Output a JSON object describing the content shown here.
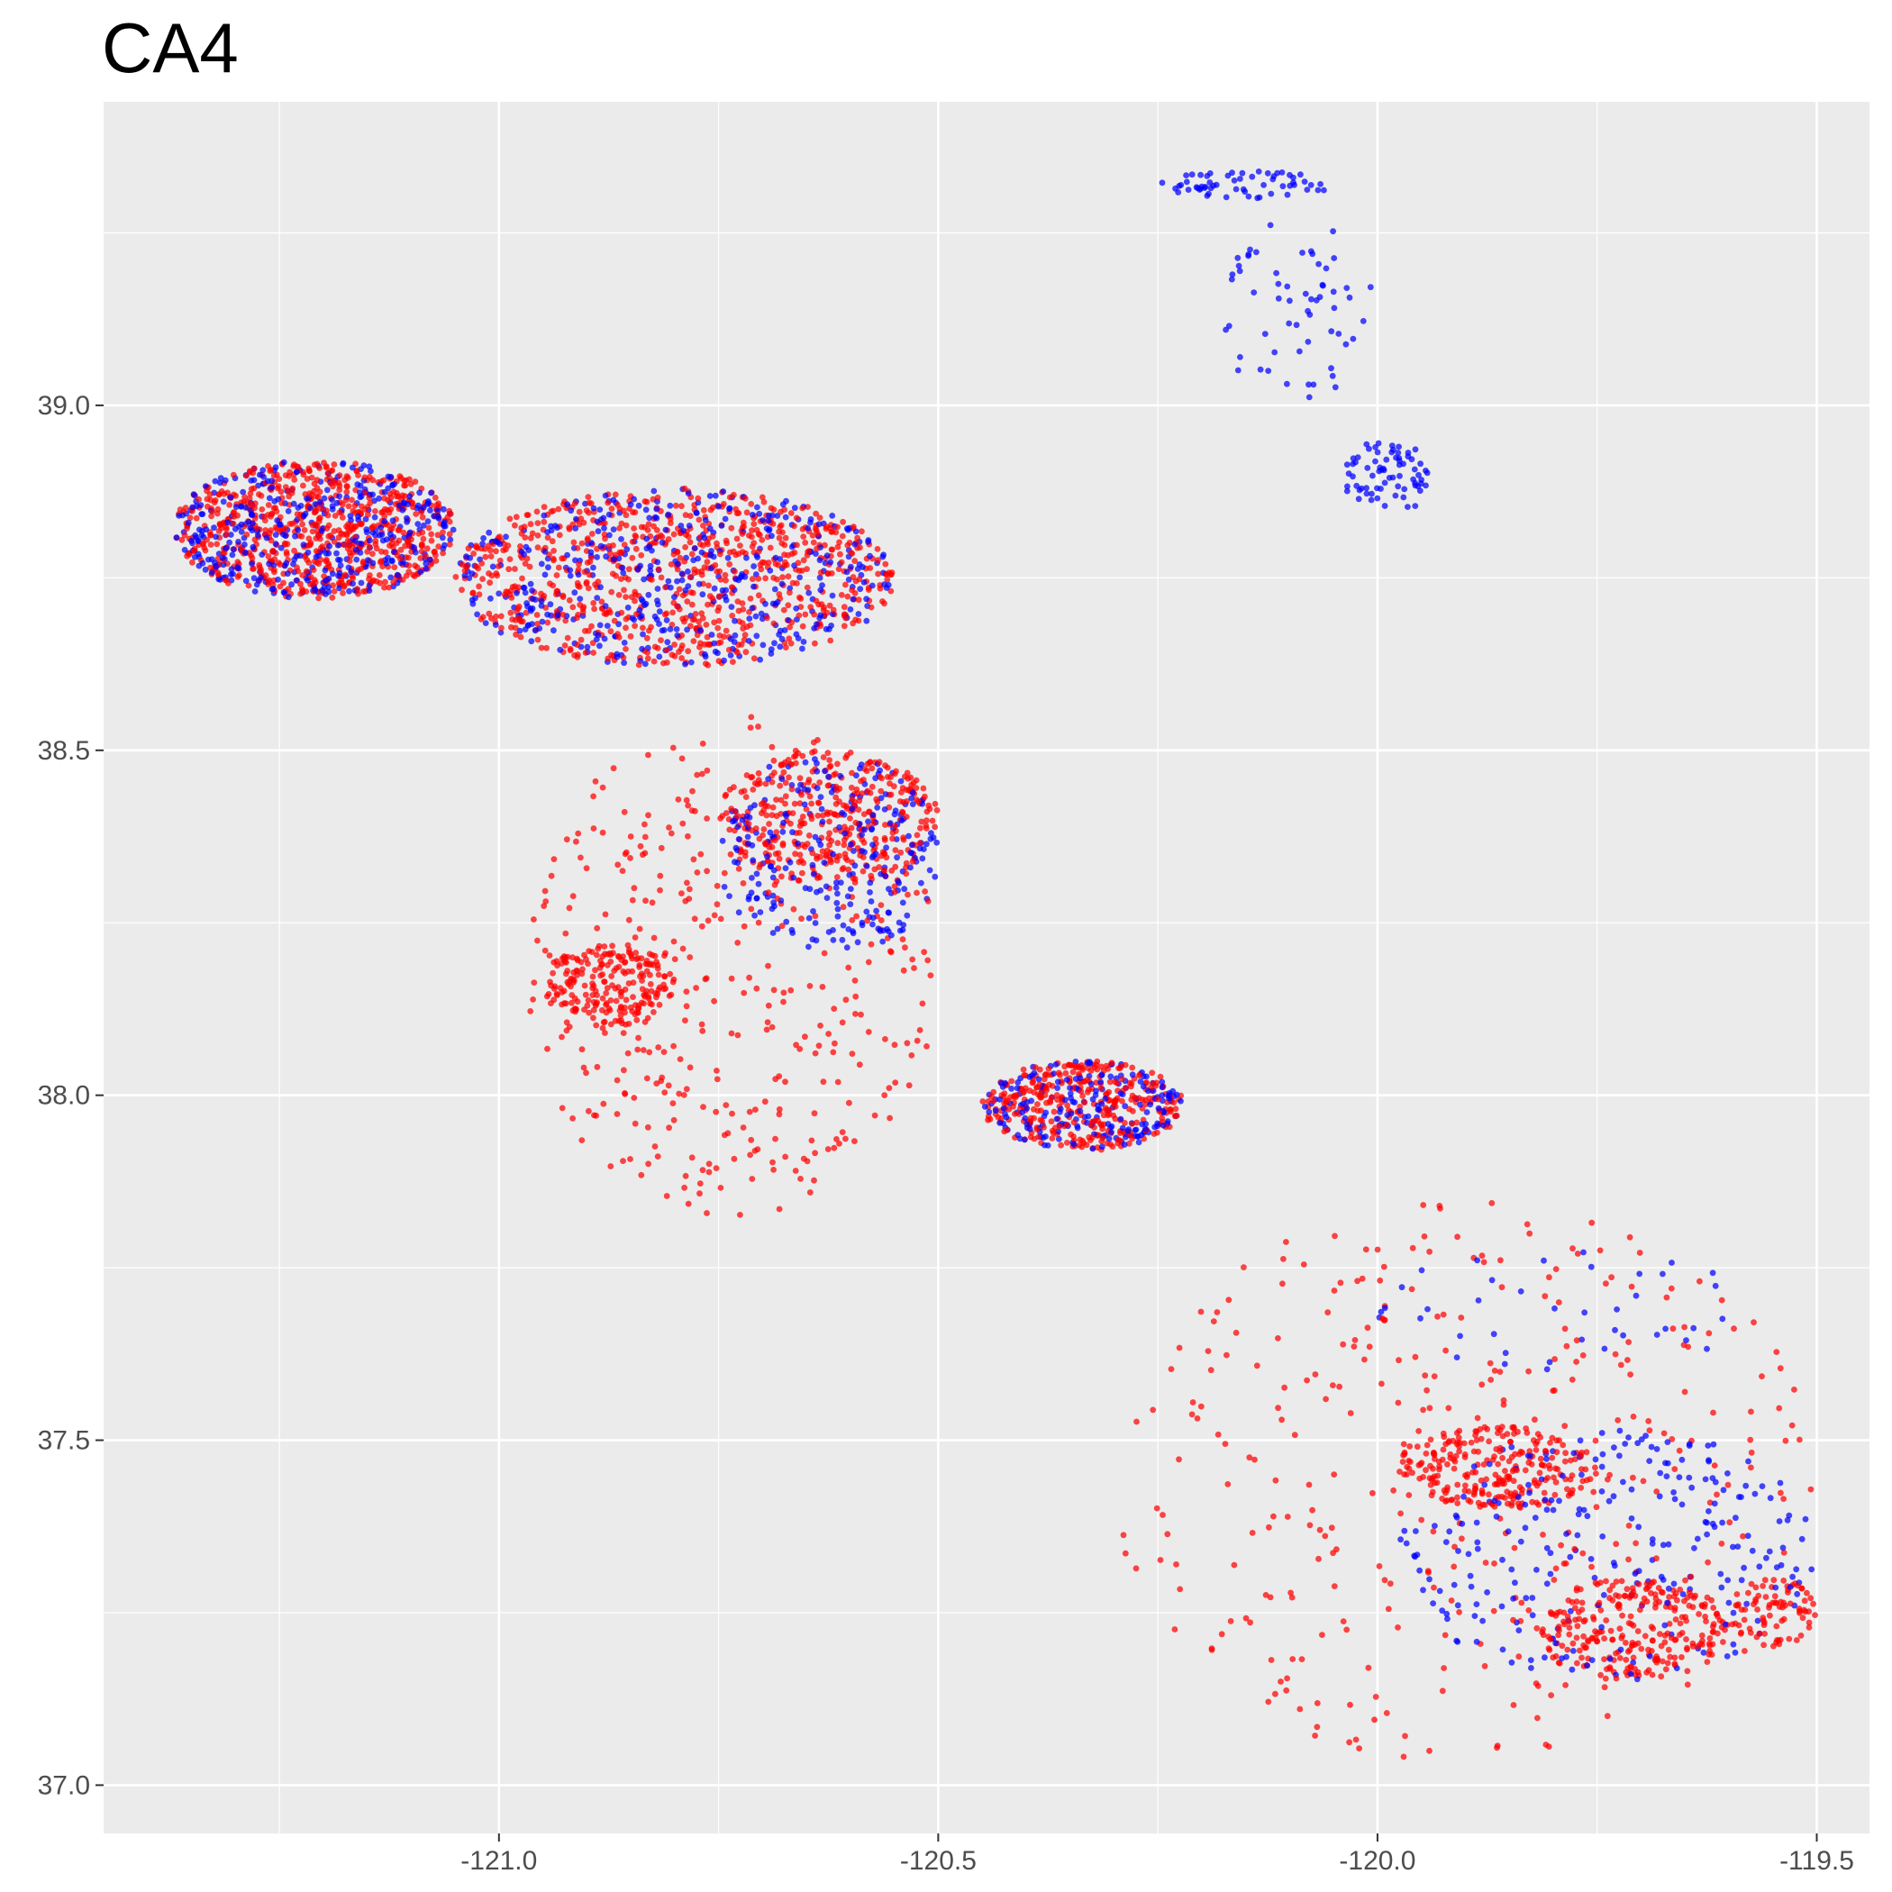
{
  "chart_data": {
    "type": "scatter",
    "title": "CA4",
    "xlabel": "",
    "ylabel": "",
    "xlim": [
      -121.45,
      -119.44
    ],
    "ylim": [
      36.93,
      39.44
    ],
    "x_ticks": [
      -121.0,
      -120.5,
      -120.0,
      -119.5
    ],
    "x_tick_labels": [
      "-121.0",
      "-120.5",
      "-120.0",
      "-119.5"
    ],
    "y_ticks": [
      37.0,
      37.5,
      38.0,
      38.5,
      39.0
    ],
    "y_tick_labels": [
      "37.0",
      "37.5",
      "38.0",
      "38.5",
      "39.0"
    ],
    "grid": true,
    "legend": "none",
    "colors": {
      "panel": "#ebebeb",
      "grid": "#ffffff",
      "red_series": "#ff0000",
      "blue_series": "#0000ff"
    },
    "series": [
      {
        "color": "#ff0000",
        "clusters": [
          {
            "lon_range": [
              -121.37,
              -121.05
            ],
            "lat_range": [
              38.72,
              38.92
            ],
            "count": 700
          },
          {
            "lon_range": [
              -121.05,
              -120.55
            ],
            "lat_range": [
              38.62,
              38.88
            ],
            "count": 800
          },
          {
            "lon_range": [
              -120.75,
              -120.5
            ],
            "lat_range": [
              38.3,
              38.5
            ],
            "count": 350
          },
          {
            "lon_range": [
              -120.95,
              -120.8
            ],
            "lat_range": [
              38.1,
              38.22
            ],
            "count": 200
          },
          {
            "lon_range": [
              -120.45,
              -120.22
            ],
            "lat_range": [
              37.92,
              38.05
            ],
            "count": 350
          },
          {
            "lon_range": [
              -119.98,
              -119.75
            ],
            "lat_range": [
              37.4,
              37.52
            ],
            "count": 250
          },
          {
            "lon_range": [
              -119.82,
              -119.6
            ],
            "lat_range": [
              37.15,
              37.3
            ],
            "count": 250
          },
          {
            "lon_range": [
              -119.6,
              -119.5
            ],
            "lat_range": [
              37.2,
              37.3
            ],
            "count": 80
          },
          {
            "lon_range": [
              -120.97,
              -120.5
            ],
            "lat_range": [
              37.82,
              38.55
            ],
            "count": 400
          },
          {
            "lon_range": [
              -120.3,
              -119.5
            ],
            "lat_range": [
              37.03,
              37.85
            ],
            "count": 350
          }
        ]
      },
      {
        "color": "#0000ff",
        "clusters": [
          {
            "lon_range": [
              -120.25,
              -120.05
            ],
            "lat_range": [
              39.3,
              39.34
            ],
            "count": 60
          },
          {
            "lon_range": [
              -120.18,
              -120.0
            ],
            "lat_range": [
              39.0,
              39.27
            ],
            "count": 60
          },
          {
            "lon_range": [
              -120.04,
              -119.94
            ],
            "lat_range": [
              38.84,
              38.95
            ],
            "count": 70
          },
          {
            "lon_range": [
              -121.37,
              -121.05
            ],
            "lat_range": [
              38.72,
              38.92
            ],
            "count": 400
          },
          {
            "lon_range": [
              -121.05,
              -120.55
            ],
            "lat_range": [
              38.62,
              38.88
            ],
            "count": 450
          },
          {
            "lon_range": [
              -120.75,
              -120.5
            ],
            "lat_range": [
              38.2,
              38.5
            ],
            "count": 250
          },
          {
            "lon_range": [
              -120.45,
              -120.22
            ],
            "lat_range": [
              37.92,
              38.05
            ],
            "count": 200
          },
          {
            "lon_range": [
              -119.98,
              -119.5
            ],
            "lat_range": [
              37.15,
              37.52
            ],
            "count": 250
          },
          {
            "lon_range": [
              -120.0,
              -119.56
            ],
            "lat_range": [
              37.6,
              37.78
            ],
            "count": 40
          }
        ]
      }
    ]
  }
}
